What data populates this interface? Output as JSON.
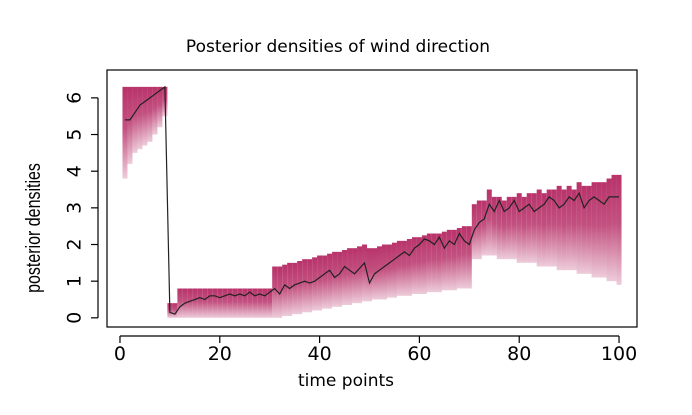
{
  "chart_data": {
    "type": "density_strips",
    "title": "Posterior densities of wind direction",
    "xlabel": "time points",
    "ylabel": "posterior densities",
    "band_color": "#b8336a",
    "line_color": "#222222",
    "xlim": [
      -2.6,
      103.6
    ],
    "ylim": [
      -0.25,
      6.76
    ],
    "xticks": [
      0,
      20,
      40,
      60,
      80,
      100
    ],
    "yticks": [
      0,
      1,
      2,
      3,
      4,
      5,
      6
    ],
    "x": [
      1,
      2,
      3,
      4,
      5,
      6,
      7,
      8,
      9,
      10,
      11,
      12,
      13,
      14,
      15,
      16,
      17,
      18,
      19,
      20,
      21,
      22,
      23,
      24,
      25,
      26,
      27,
      28,
      29,
      30,
      31,
      32,
      33,
      34,
      35,
      36,
      37,
      38,
      39,
      40,
      41,
      42,
      43,
      44,
      45,
      46,
      47,
      48,
      49,
      50,
      51,
      52,
      53,
      54,
      55,
      56,
      57,
      58,
      59,
      60,
      61,
      62,
      63,
      64,
      65,
      66,
      67,
      68,
      69,
      70,
      71,
      72,
      73,
      74,
      75,
      76,
      77,
      78,
      79,
      80,
      81,
      82,
      83,
      84,
      85,
      86,
      87,
      88,
      89,
      90,
      91,
      92,
      93,
      94,
      95,
      96,
      97,
      98,
      99,
      100
    ],
    "values": [
      5.4,
      5.4,
      5.6,
      5.8,
      5.9,
      6.0,
      6.1,
      6.2,
      6.3,
      0.15,
      0.1,
      0.3,
      0.4,
      0.45,
      0.5,
      0.55,
      0.5,
      0.6,
      0.6,
      0.55,
      0.6,
      0.65,
      0.6,
      0.65,
      0.6,
      0.7,
      0.6,
      0.65,
      0.6,
      0.7,
      0.8,
      0.65,
      0.9,
      0.8,
      0.9,
      0.95,
      1.0,
      0.95,
      1.0,
      1.1,
      1.2,
      1.3,
      1.1,
      1.2,
      1.4,
      1.3,
      1.2,
      1.35,
      1.5,
      0.95,
      1.2,
      1.3,
      1.4,
      1.5,
      1.6,
      1.7,
      1.8,
      1.7,
      1.9,
      2.0,
      2.15,
      2.1,
      2.0,
      2.2,
      1.9,
      2.1,
      2.0,
      2.3,
      2.1,
      2.0,
      2.4,
      2.6,
      2.7,
      3.1,
      2.9,
      3.2,
      2.9,
      3.0,
      3.2,
      2.9,
      3.0,
      3.1,
      2.9,
      3.0,
      3.1,
      3.3,
      3.2,
      3.0,
      3.1,
      3.3,
      3.2,
      3.4,
      3.0,
      3.2,
      3.3,
      3.2,
      3.1,
      3.3,
      3.3,
      3.3
    ],
    "low": [
      3.8,
      4.2,
      4.5,
      4.6,
      4.7,
      4.8,
      5.0,
      5.2,
      5.5,
      0,
      0,
      0,
      0,
      0,
      0,
      0,
      0,
      0,
      0,
      0,
      0,
      0,
      0,
      0,
      0,
      0,
      0,
      0,
      0,
      0,
      0.0,
      0.0,
      0.05,
      0.05,
      0.1,
      0.1,
      0.15,
      0.15,
      0.2,
      0.2,
      0.25,
      0.25,
      0.3,
      0.3,
      0.35,
      0.35,
      0.4,
      0.4,
      0.45,
      0.45,
      0.5,
      0.5,
      0.5,
      0.55,
      0.55,
      0.6,
      0.6,
      0.6,
      0.65,
      0.65,
      0.65,
      0.7,
      0.7,
      0.7,
      0.75,
      0.75,
      0.75,
      0.8,
      0.8,
      0.8,
      1.6,
      1.6,
      1.7,
      1.7,
      1.7,
      1.6,
      1.6,
      1.6,
      1.6,
      1.5,
      1.5,
      1.5,
      1.5,
      1.4,
      1.4,
      1.4,
      1.4,
      1.3,
      1.3,
      1.3,
      1.3,
      1.2,
      1.2,
      1.2,
      1.1,
      1.1,
      1.1,
      1.0,
      1.0,
      0.9
    ],
    "high": [
      6.3,
      6.3,
      6.3,
      6.3,
      6.3,
      6.3,
      6.3,
      6.3,
      6.3,
      0.4,
      0.4,
      0.8,
      0.8,
      0.8,
      0.8,
      0.8,
      0.8,
      0.8,
      0.8,
      0.8,
      0.8,
      0.8,
      0.8,
      0.8,
      0.8,
      0.8,
      0.8,
      0.8,
      0.8,
      0.8,
      1.4,
      1.4,
      1.45,
      1.5,
      1.5,
      1.55,
      1.6,
      1.6,
      1.65,
      1.7,
      1.7,
      1.75,
      1.8,
      1.8,
      1.85,
      1.9,
      1.9,
      1.95,
      2.0,
      1.9,
      1.9,
      1.95,
      2.0,
      2.0,
      2.05,
      2.1,
      2.1,
      2.15,
      2.2,
      2.2,
      2.25,
      2.3,
      2.3,
      2.3,
      2.35,
      2.4,
      2.4,
      2.45,
      2.5,
      2.5,
      3.1,
      3.2,
      3.2,
      3.5,
      3.3,
      3.3,
      3.2,
      3.3,
      3.3,
      3.4,
      3.3,
      3.4,
      3.4,
      3.5,
      3.4,
      3.5,
      3.5,
      3.6,
      3.5,
      3.6,
      3.5,
      3.7,
      3.6,
      3.6,
      3.7,
      3.7,
      3.7,
      3.8,
      3.9,
      3.9
    ]
  }
}
